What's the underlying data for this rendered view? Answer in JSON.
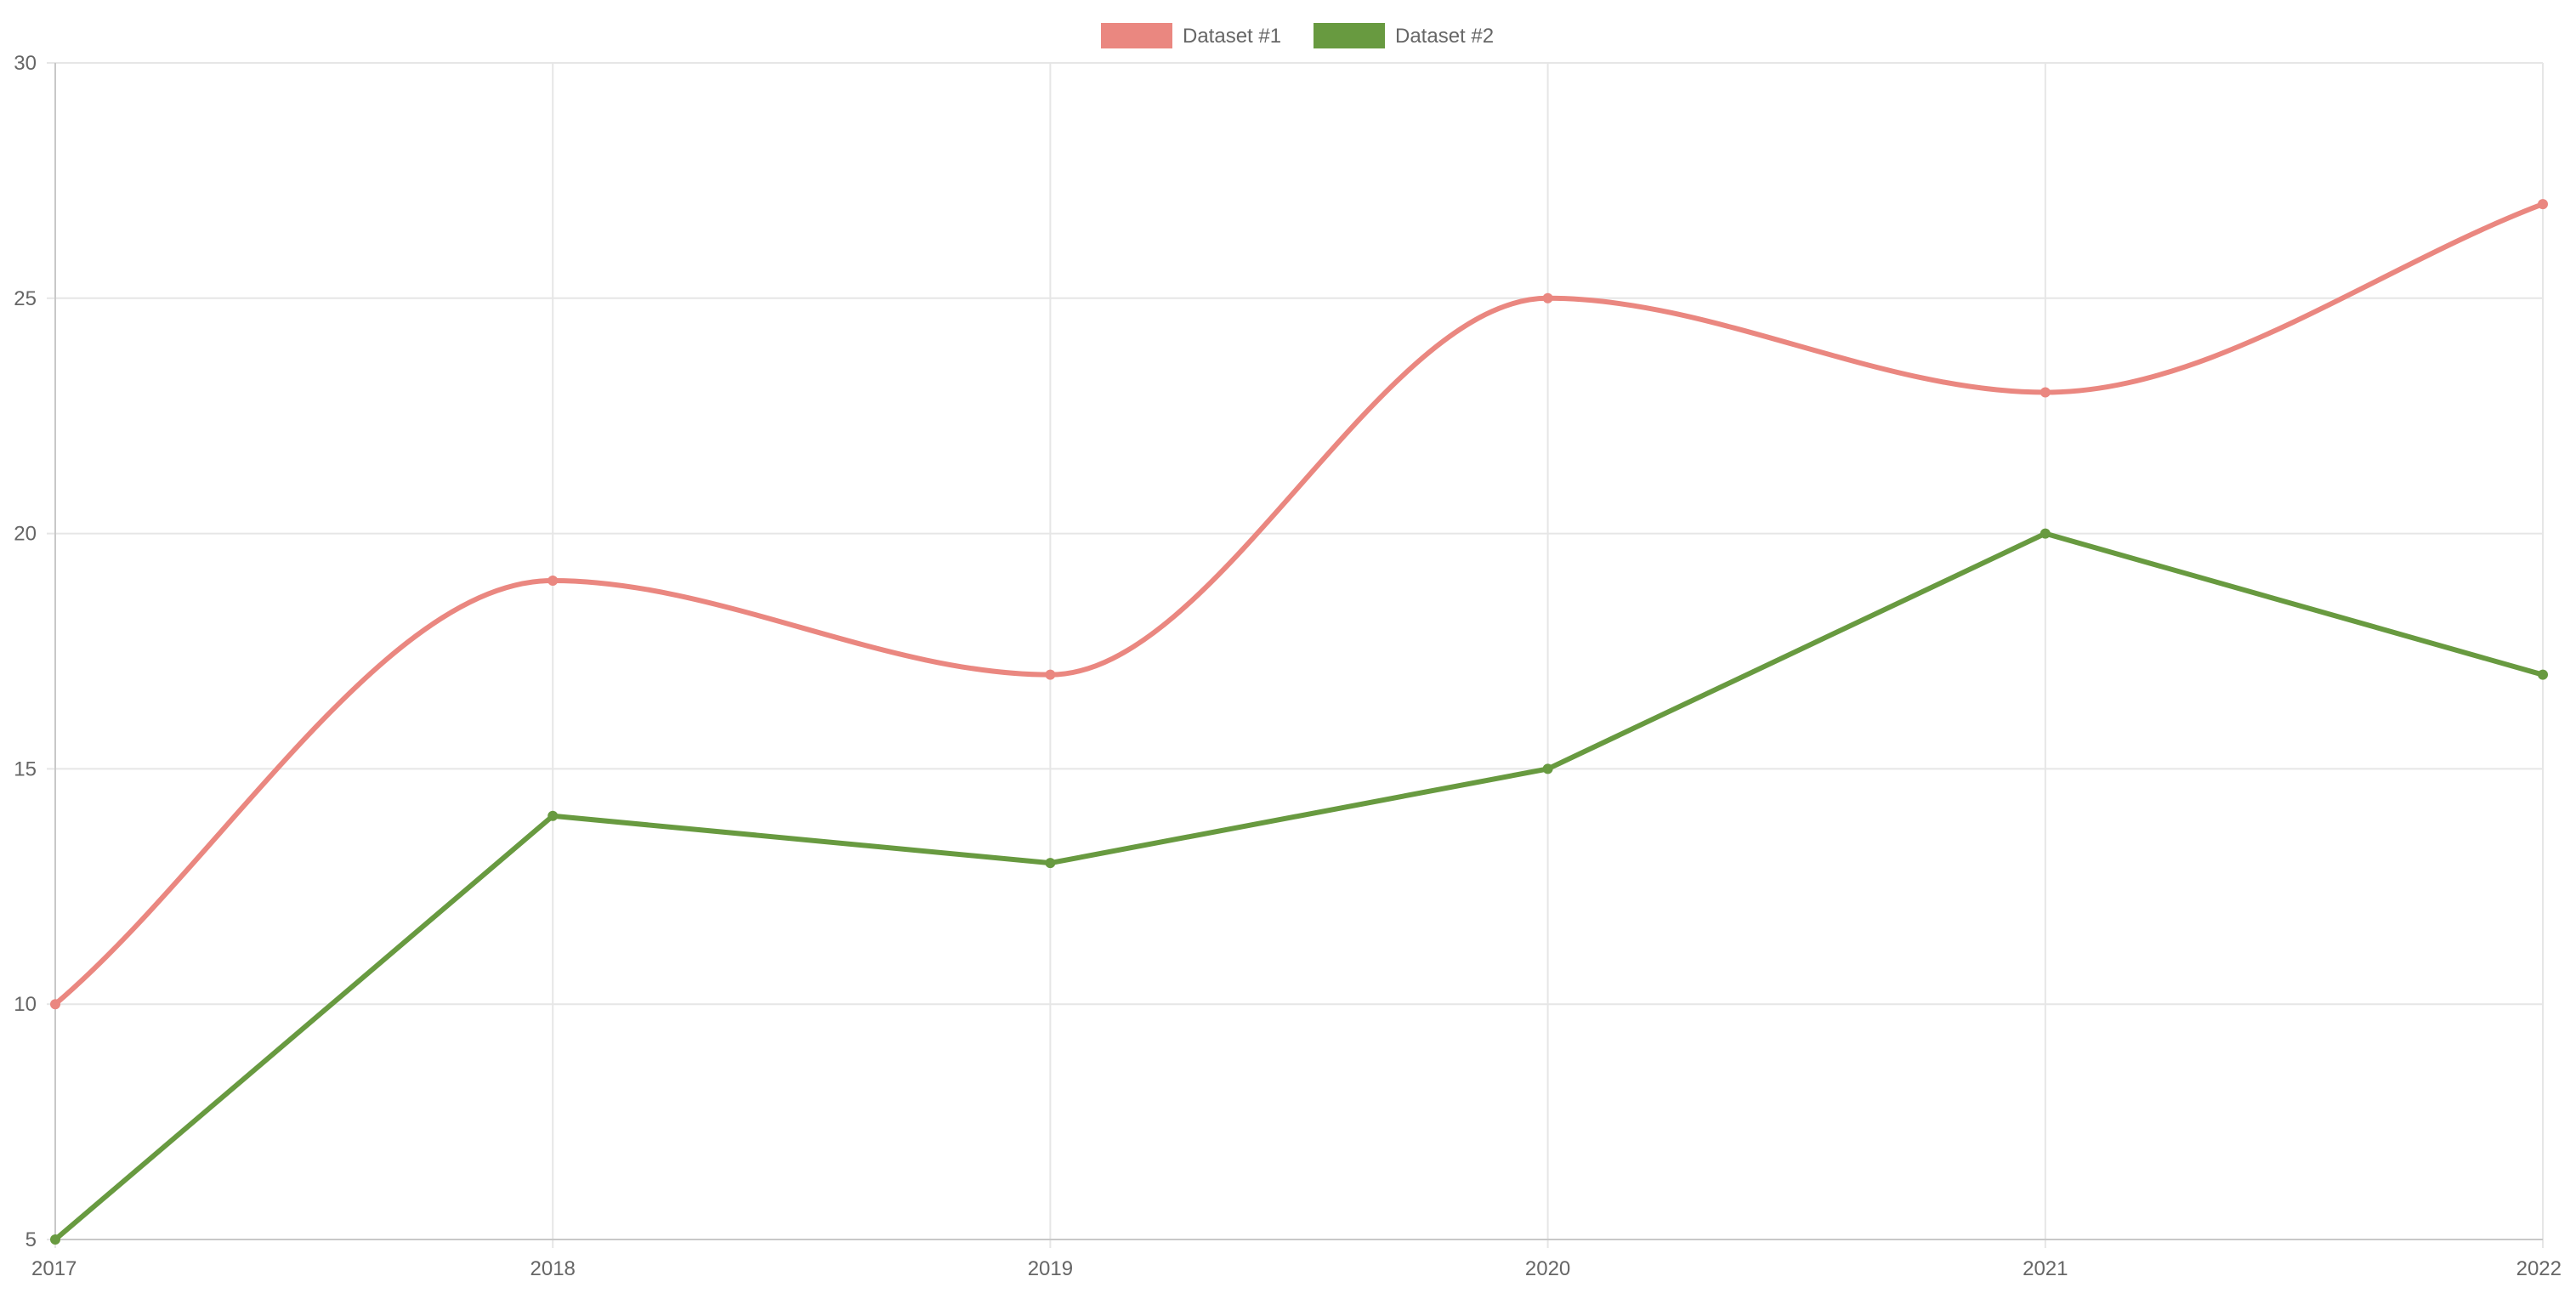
{
  "chart_data": {
    "type": "line",
    "categories": [
      "2017",
      "2018",
      "2019",
      "2020",
      "2021",
      "2022"
    ],
    "series": [
      {
        "name": "Dataset #1",
        "values": [
          10,
          19,
          17,
          25,
          23,
          27
        ],
        "color": "#ea8780",
        "curve": "smooth"
      },
      {
        "name": "Dataset #2",
        "values": [
          5,
          14,
          13,
          15,
          20,
          17
        ],
        "color": "#689a40",
        "curve": "straight"
      }
    ],
    "ylim": [
      5,
      30
    ],
    "yticks": [
      "5",
      "10",
      "15",
      "20",
      "25",
      "30"
    ],
    "grid": true,
    "legend_position": "top-center"
  }
}
